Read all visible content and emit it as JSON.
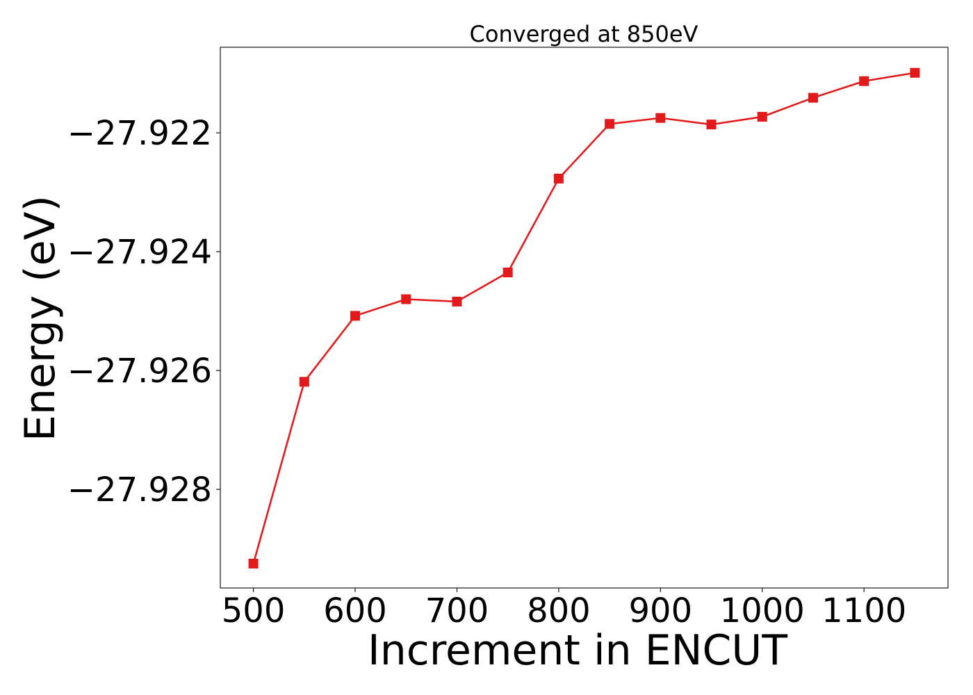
{
  "chart_data": {
    "type": "line",
    "title": "Converged at 850eV",
    "xlabel": "Increment in ENCUT",
    "ylabel": "Energy (eV)",
    "x": [
      500,
      550,
      600,
      650,
      700,
      750,
      800,
      850,
      900,
      950,
      1000,
      1050,
      1100,
      1150
    ],
    "series": [
      {
        "values": [
          -27.92925,
          -27.92619,
          -27.92508,
          -27.9248,
          -27.92484,
          -27.92435,
          -27.92277,
          -27.92185,
          -27.92175,
          -27.92186,
          -27.92173,
          -27.92141,
          -27.92113,
          -27.92099
        ],
        "color": "#e31a1c",
        "marker": "square"
      }
    ],
    "xlim": [
      467.5,
      1182.5
    ],
    "ylim": [
      -27.92966,
      -27.92056
    ],
    "xticks": [
      500,
      600,
      700,
      800,
      900,
      1000,
      1100
    ],
    "xtick_labels": [
      "500",
      "600",
      "700",
      "800",
      "900",
      "1000",
      "1100"
    ],
    "yticks": [
      -27.922,
      -27.924,
      -27.926,
      -27.928
    ],
    "ytick_labels": [
      "−27.922",
      "−27.924",
      "−27.926",
      "−27.928"
    ],
    "grid": false,
    "legend": false
  }
}
